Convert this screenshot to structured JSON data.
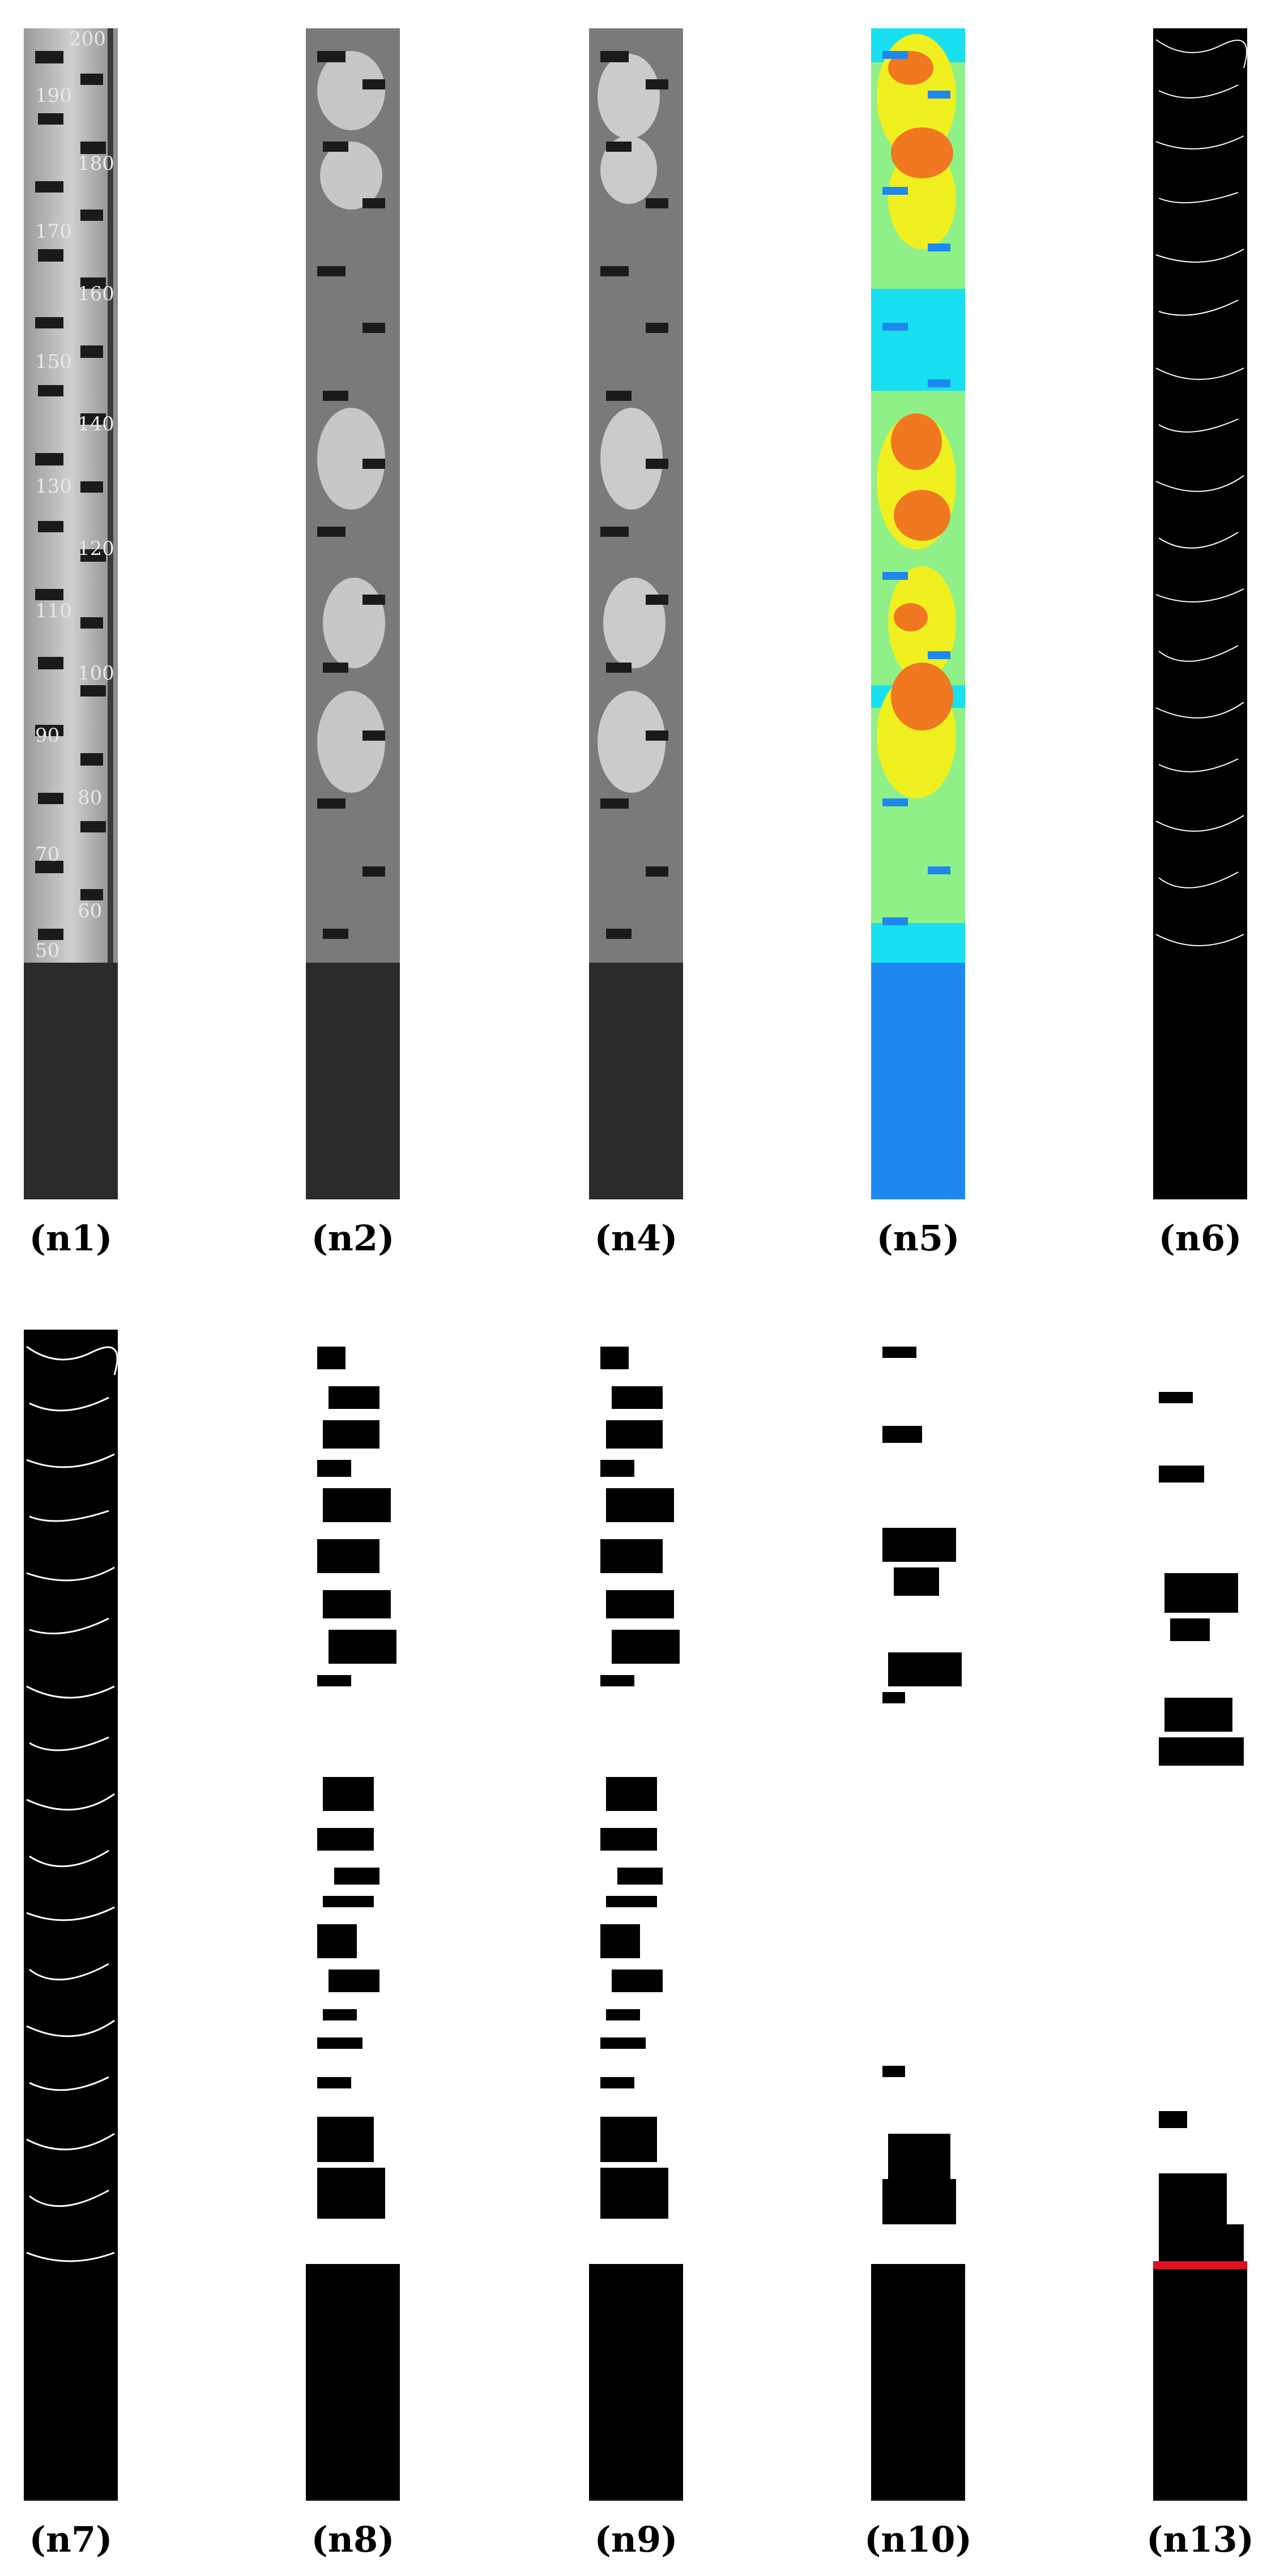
{
  "panels": [
    {
      "id": "n1",
      "label": "(n1)",
      "type": "gauge-photo"
    },
    {
      "id": "n2",
      "label": "(n2)",
      "type": "grayscale"
    },
    {
      "id": "n4",
      "label": "(n4)",
      "type": "grayscale-filtered"
    },
    {
      "id": "n5",
      "label": "(n5)",
      "type": "pseudocolor"
    },
    {
      "id": "n6",
      "label": "(n6)",
      "type": "edges"
    },
    {
      "id": "n7",
      "label": "(n7)",
      "type": "edges-dilated"
    },
    {
      "id": "n8",
      "label": "(n8)",
      "type": "binary"
    },
    {
      "id": "n9",
      "label": "(n9)",
      "type": "binary-cleaned"
    },
    {
      "id": "n10",
      "label": "(n10)",
      "type": "binary-filtered"
    },
    {
      "id": "n13",
      "label": "(n13)",
      "type": "waterline-detected"
    }
  ],
  "gauge_scale": [
    "200",
    "190",
    "180",
    "170",
    "160",
    "150",
    "140",
    "130",
    "120",
    "110",
    "100",
    "90",
    "80",
    "70",
    "60",
    "50"
  ],
  "colors": {
    "black": "#000000",
    "white": "#ffffff",
    "photo_dark": "#2b2b2b",
    "pseudo_blue": "#1e88f0",
    "pseudo_cyan": "#18e0f0",
    "pseudo_green": "#90f088",
    "pseudo_yellow": "#f0f020",
    "pseudo_orange": "#f07820",
    "waterline_red": "#e01020"
  }
}
